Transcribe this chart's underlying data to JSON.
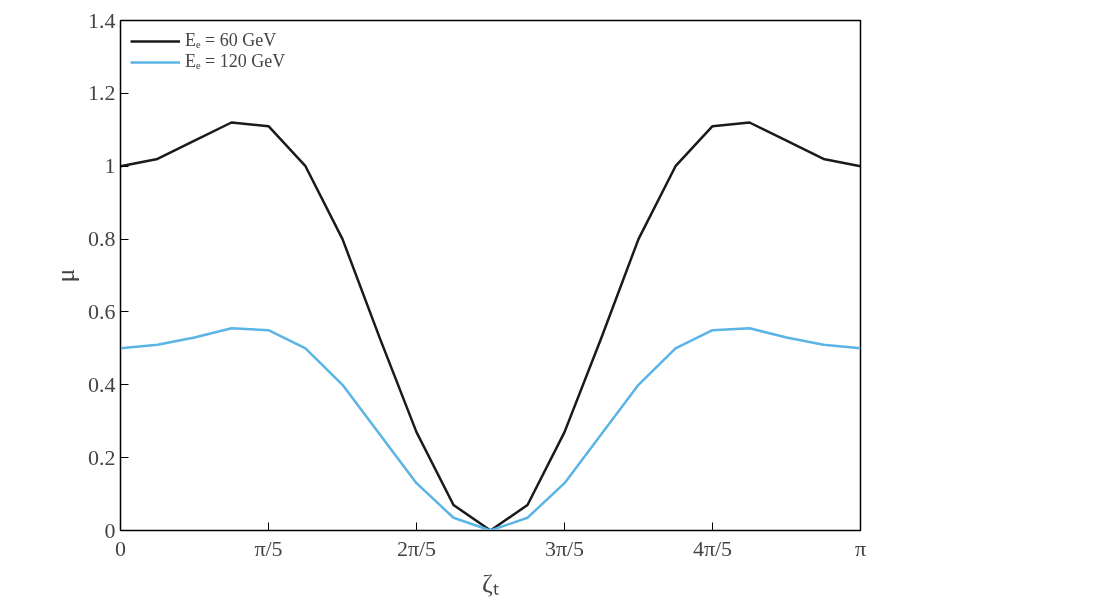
{
  "chart_data": {
    "type": "line",
    "xlabel": "ζₜ",
    "ylabel": "μ",
    "x": [
      0,
      0.1571,
      0.3142,
      0.4712,
      0.6283,
      0.7854,
      0.9425,
      1.0996,
      1.2566,
      1.4137,
      1.5708,
      1.7279,
      1.885,
      2.042,
      2.1991,
      2.3562,
      2.5133,
      2.6704,
      2.8274,
      2.9845,
      3.1416
    ],
    "series": [
      {
        "name": "Eₑ = 60 GeV",
        "color": "#1a1a1a",
        "values": [
          1.0,
          1.02,
          1.07,
          1.12,
          1.11,
          1.0,
          0.8,
          0.53,
          0.27,
          0.07,
          0.0,
          0.07,
          0.27,
          0.53,
          0.8,
          1.0,
          1.11,
          1.12,
          1.07,
          1.02,
          1.0
        ]
      },
      {
        "name": "Eₑ = 120 GeV",
        "color": "#5ab4e5",
        "values": [
          0.5,
          0.51,
          0.53,
          0.555,
          0.55,
          0.5,
          0.4,
          0.265,
          0.13,
          0.035,
          0.0,
          0.035,
          0.13,
          0.265,
          0.4,
          0.5,
          0.55,
          0.555,
          0.53,
          0.51,
          0.5
        ]
      }
    ],
    "xlim": [
      0,
      3.1416
    ],
    "ylim": [
      0,
      1.4
    ],
    "xticks": [
      0,
      {
        "value": 0.6283,
        "label": "π/5"
      },
      {
        "value": 1.2566,
        "label": "2π/5"
      },
      {
        "value": 1.885,
        "label": "3π/5"
      },
      {
        "value": 2.5133,
        "label": "4π/5"
      },
      {
        "value": 3.1416,
        "label": "π"
      }
    ],
    "yticks": [
      0,
      0.2,
      0.4,
      0.6,
      0.8,
      1,
      1.2,
      1.4
    ],
    "grid": false,
    "legend": "top left"
  }
}
